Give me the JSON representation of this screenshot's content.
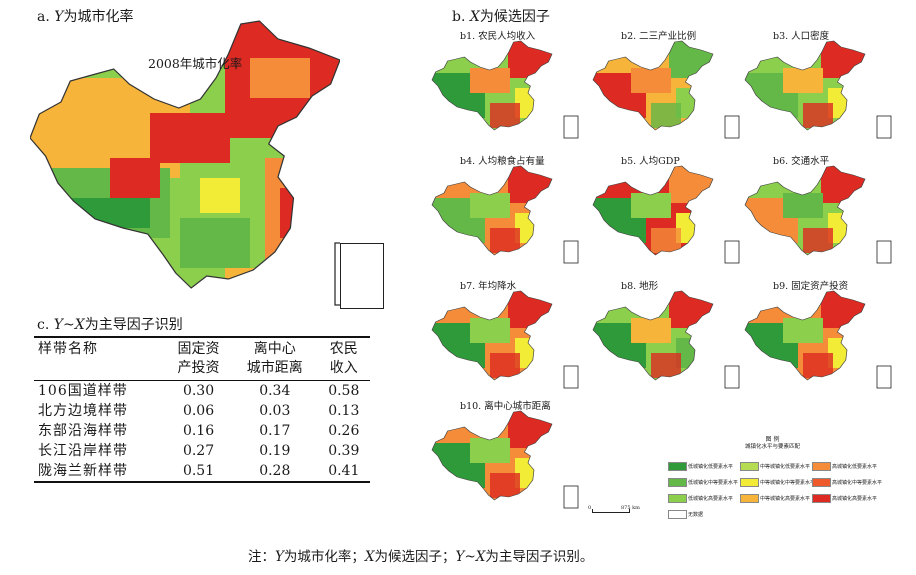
{
  "panel_a": {
    "prefix": "a.",
    "var": "Y",
    "rest": "为城市化率",
    "map_label": "2008年城市化率"
  },
  "panel_b": {
    "prefix": "b.",
    "var": "X",
    "rest": "为候选因子"
  },
  "panel_c": {
    "prefix": "c.",
    "var": "Y~X",
    "rest": "为主导因子识别"
  },
  "small_maps": [
    {
      "label": "b1. 农民人均收入"
    },
    {
      "label": "b2. 二三产业比例"
    },
    {
      "label": "b3. 人口密度"
    },
    {
      "label": "b4. 人均粮食占有量"
    },
    {
      "label": "b5. 人均GDP"
    },
    {
      "label": "b6. 交通水平"
    },
    {
      "label": "b7. 年均降水"
    },
    {
      "label": "b8. 地形"
    },
    {
      "label": "b9. 固定资产投资"
    },
    {
      "label": "b10. 离中心城市距离"
    }
  ],
  "table": {
    "headers": [
      {
        "line1": "样带名称",
        "line2": ""
      },
      {
        "line1": "固定资",
        "line2": "产投资"
      },
      {
        "line1": "离中心",
        "line2": "城市距离"
      },
      {
        "line1": "农民",
        "line2": "收入"
      }
    ],
    "rows": [
      {
        "name": "106国道样带",
        "v1": "0.30",
        "v2": "0.34",
        "v3": "0.58"
      },
      {
        "name": "北方边境样带",
        "v1": "0.06",
        "v2": "0.03",
        "v3": "0.13"
      },
      {
        "name": "东部沿海样带",
        "v1": "0.16",
        "v2": "0.17",
        "v3": "0.26"
      },
      {
        "name": "长江沿岸样带",
        "v1": "0.27",
        "v2": "0.19",
        "v3": "0.39"
      },
      {
        "name": "陇海兰新样带",
        "v1": "0.51",
        "v2": "0.28",
        "v3": "0.41"
      }
    ]
  },
  "legend": {
    "title1": "图 例",
    "title2": "城镇化水平与要素匹配",
    "items": [
      {
        "label": "低城镇化低要素水平",
        "color": "#2e9a3a"
      },
      {
        "label": "中等城镇化低要素水平",
        "color": "#b5dc52"
      },
      {
        "label": "高城镇化低要素水平",
        "color": "#f48c3a"
      },
      {
        "label": "低城镇化中等要素水平",
        "color": "#63b847"
      },
      {
        "label": "中等城镇化中等要素水平",
        "color": "#f2ec36"
      },
      {
        "label": "高城镇化中等要素水平",
        "color": "#ee5a2c"
      },
      {
        "label": "低城镇化高要素水平",
        "color": "#8ccf4c"
      },
      {
        "label": "中等城镇化高要素水平",
        "color": "#f6b43a"
      },
      {
        "label": "高城镇化高要素水平",
        "color": "#dd2a22"
      },
      {
        "label": "无数据",
        "color": "#ffffff"
      }
    ],
    "scale_zero": "0",
    "scale_text": "875 km"
  },
  "colors": {
    "red": "#dd2a22",
    "orange": "#f48c3a",
    "yellow": "#f2ec36",
    "light_green": "#8ccf4c",
    "green": "#63b847",
    "dark_green": "#2e9a3a"
  },
  "footnote": {
    "p1": "注：",
    "v1": "Y",
    "t1": "为城市化率；",
    "v2": "X",
    "t2": "为候选因子；",
    "v3": "Y~X",
    "t3": "为主导因子识别。"
  }
}
